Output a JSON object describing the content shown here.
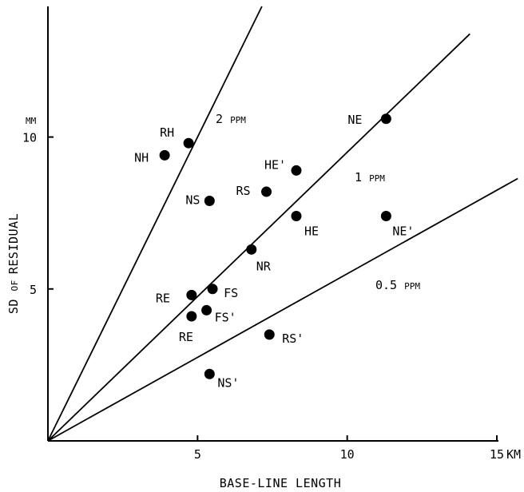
{
  "chart_data": {
    "type": "scatter",
    "title": "",
    "xlabel": "BASE-LINE LENGTH",
    "ylabel": {
      "words": [
        "SD",
        "OF",
        "RESIDUAL"
      ]
    },
    "x_unit": "KM",
    "y_unit": "MM",
    "xlim": [
      0,
      15
    ],
    "ylim": [
      0,
      14.3
    ],
    "x_ticks": [
      "5",
      "10",
      "15"
    ],
    "y_ticks": [
      "5",
      "10"
    ],
    "grid": false,
    "points": [
      {
        "label": "NE",
        "x": 11.3,
        "y": 10.6
      },
      {
        "label": "RH",
        "x": 4.7,
        "y": 9.8
      },
      {
        "label": "NH",
        "x": 3.9,
        "y": 9.4
      },
      {
        "label": "HE'",
        "x": 8.3,
        "y": 8.9
      },
      {
        "label": "NS",
        "x": 5.4,
        "y": 7.9
      },
      {
        "label": "RS",
        "x": 7.3,
        "y": 8.2
      },
      {
        "label": "HE",
        "x": 8.3,
        "y": 7.4
      },
      {
        "label": "NE'",
        "x": 11.3,
        "y": 7.4
      },
      {
        "label": "NR",
        "x": 6.8,
        "y": 6.3
      },
      {
        "label": "RE",
        "x": 4.8,
        "y": 4.8
      },
      {
        "label": "FS",
        "x": 5.5,
        "y": 5.0
      },
      {
        "label": "FS'",
        "x": 5.3,
        "y": 4.3
      },
      {
        "label": "RE",
        "x": 4.8,
        "y": 4.1
      },
      {
        "label": "RS'",
        "x": 7.4,
        "y": 3.5
      },
      {
        "label": "NS'",
        "x": 5.4,
        "y": 2.2
      }
    ],
    "reference_lines": [
      {
        "label": {
          "num": "2",
          "unit": "PPM"
        },
        "slope": 2.0
      },
      {
        "label": {
          "num": "1",
          "unit": "PPM"
        },
        "slope": 0.95
      },
      {
        "label": {
          "num": "0.5",
          "unit": "PPM"
        },
        "slope": 0.55
      }
    ]
  }
}
